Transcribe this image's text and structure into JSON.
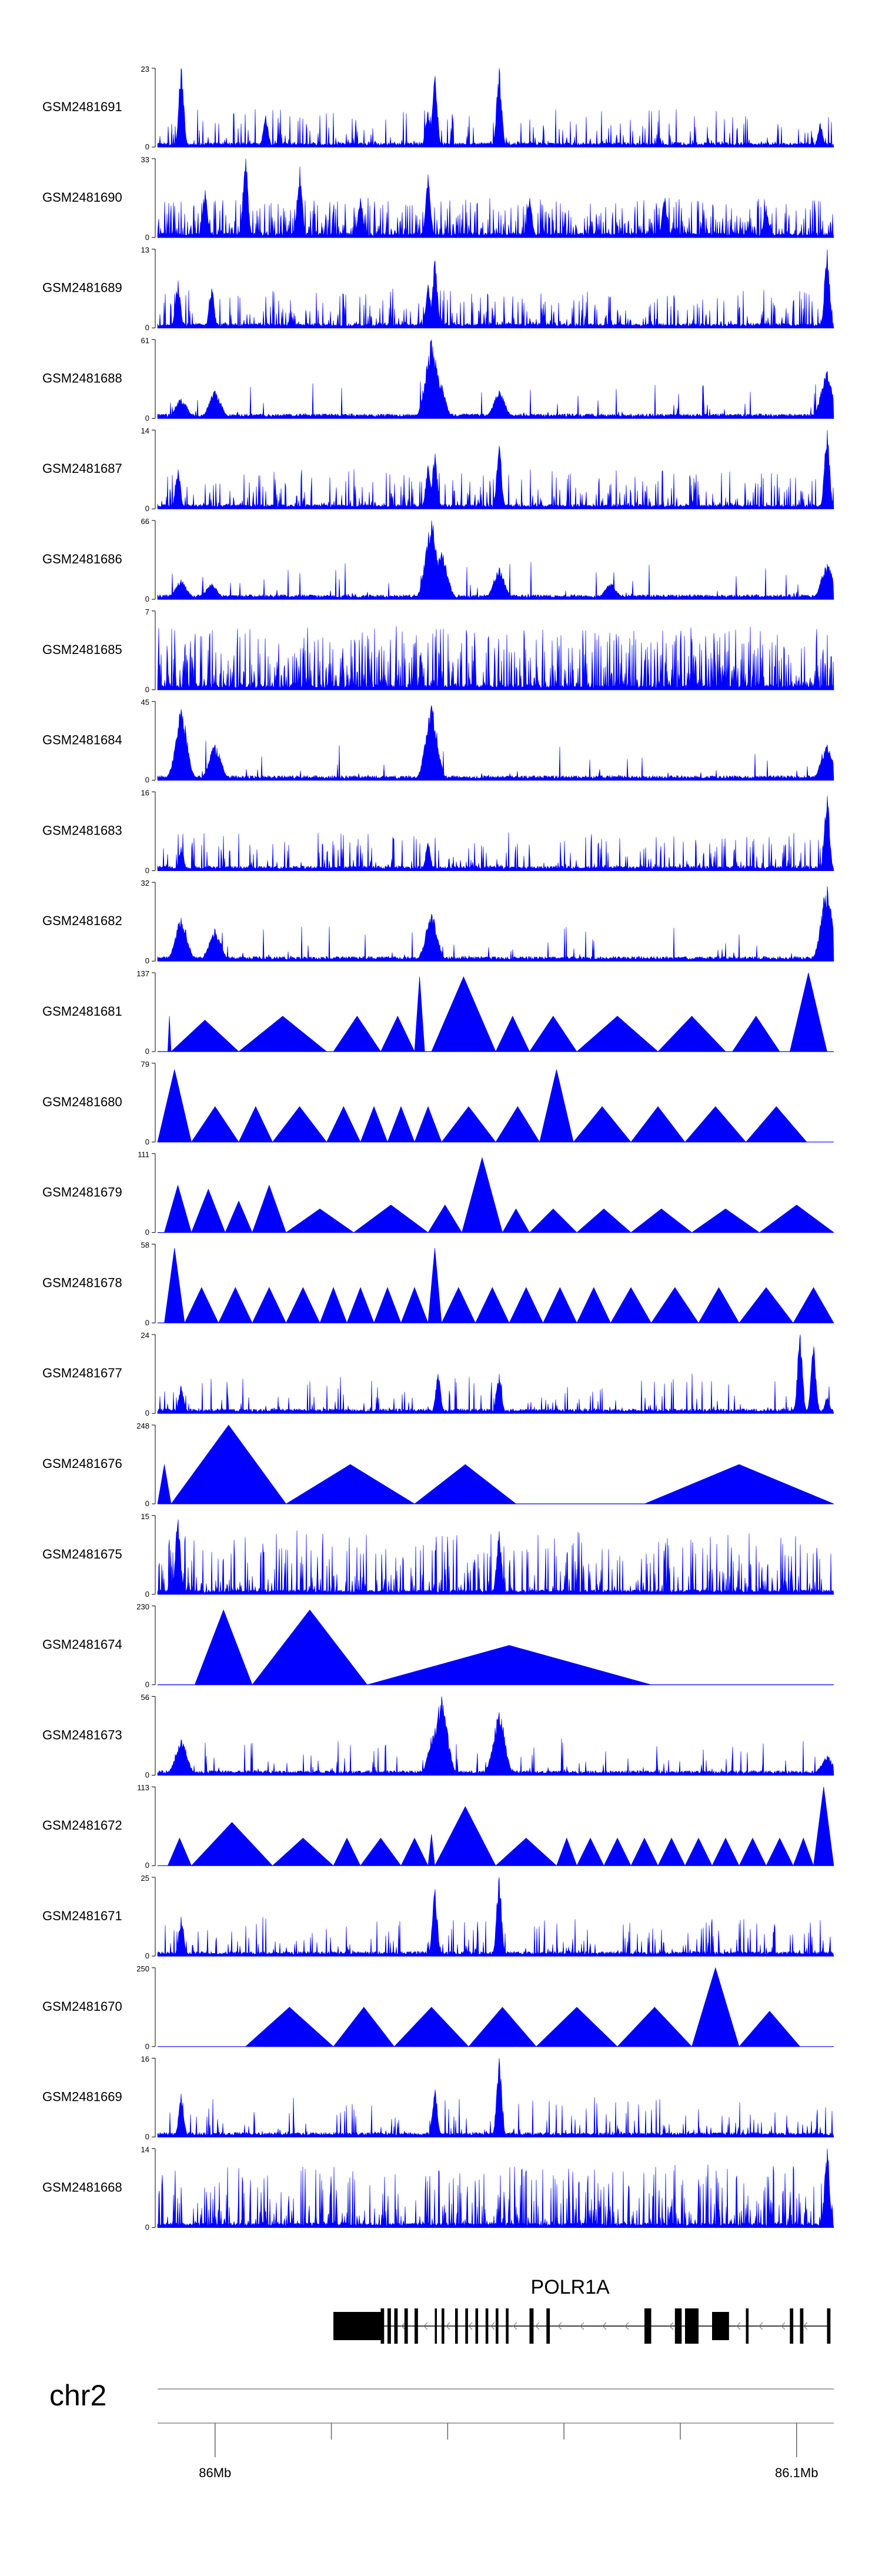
{
  "chart_data": {
    "type": "area",
    "description_source": "genome browser coverage tracks",
    "series_color": "#0000ff",
    "tracks": [
      {
        "name": "GSM2481691",
        "ymax": "23",
        "ymin": "0",
        "style": "spiky",
        "peaks": [
          [
            0.035,
            1.0
          ],
          [
            0.16,
            0.4
          ],
          [
            0.4,
            0.45
          ],
          [
            0.41,
            0.9
          ],
          [
            0.505,
            1.0
          ],
          [
            0.98,
            0.3
          ]
        ],
        "density": 0.22
      },
      {
        "name": "GSM2481690",
        "ymax": "33",
        "ymin": "0",
        "style": "spiky",
        "peaks": [
          [
            0.07,
            0.6
          ],
          [
            0.13,
            1.0
          ],
          [
            0.21,
            0.9
          ],
          [
            0.3,
            0.5
          ],
          [
            0.4,
            0.8
          ],
          [
            0.55,
            0.5
          ],
          [
            0.75,
            0.5
          ],
          [
            0.9,
            0.4
          ]
        ],
        "density": 0.55
      },
      {
        "name": "GSM2481689",
        "ymax": "13",
        "ymin": "0",
        "style": "spiky",
        "peaks": [
          [
            0.03,
            0.6
          ],
          [
            0.08,
            0.5
          ],
          [
            0.4,
            0.55
          ],
          [
            0.41,
            0.85
          ],
          [
            0.99,
            1.0
          ]
        ],
        "density": 0.3
      },
      {
        "name": "GSM2481688",
        "ymax": "61",
        "ymin": "0",
        "style": "peaks",
        "peaks": [
          [
            0.035,
            0.25
          ],
          [
            0.085,
            0.35
          ],
          [
            0.405,
            1.0
          ],
          [
            0.415,
            0.55
          ],
          [
            0.505,
            0.35
          ],
          [
            0.99,
            0.6
          ]
        ],
        "density": 0.05
      },
      {
        "name": "GSM2481687",
        "ymax": "14",
        "ymin": "0",
        "style": "spiky",
        "peaks": [
          [
            0.03,
            0.5
          ],
          [
            0.4,
            0.55
          ],
          [
            0.41,
            0.7
          ],
          [
            0.505,
            0.8
          ],
          [
            0.99,
            1.0
          ]
        ],
        "density": 0.3
      },
      {
        "name": "GSM2481686",
        "ymax": "66",
        "ymin": "0",
        "style": "peaks",
        "peaks": [
          [
            0.035,
            0.25
          ],
          [
            0.08,
            0.2
          ],
          [
            0.405,
            1.0
          ],
          [
            0.42,
            0.6
          ],
          [
            0.505,
            0.4
          ],
          [
            0.67,
            0.2
          ],
          [
            0.99,
            0.45
          ]
        ],
        "density": 0.05
      },
      {
        "name": "GSM2481685",
        "ymax": "7",
        "ymin": "0",
        "style": "dense",
        "peaks": [],
        "density": 0.6
      },
      {
        "name": "GSM2481684",
        "ymax": "45",
        "ymin": "0",
        "style": "peaks",
        "peaks": [
          [
            0.035,
            0.9
          ],
          [
            0.085,
            0.45
          ],
          [
            0.405,
            0.95
          ],
          [
            0.99,
            0.45
          ]
        ],
        "density": 0.04
      },
      {
        "name": "GSM2481683",
        "ymax": "16",
        "ymin": "0",
        "style": "spiky",
        "peaks": [
          [
            0.035,
            0.3
          ],
          [
            0.4,
            0.35
          ],
          [
            0.99,
            0.95
          ]
        ],
        "density": 0.22
      },
      {
        "name": "GSM2481682",
        "ymax": "32",
        "ymin": "0",
        "style": "peaks",
        "peaks": [
          [
            0.035,
            0.55
          ],
          [
            0.085,
            0.4
          ],
          [
            0.405,
            0.6
          ],
          [
            0.99,
            0.95
          ]
        ],
        "density": 0.06
      },
      {
        "name": "GSM2481681",
        "ymax": "137",
        "ymin": "0",
        "style": "triangles",
        "tri": [
          [
            0.015,
            0.02,
            0.45
          ],
          [
            0.02,
            0.12,
            0.4
          ],
          [
            0.12,
            0.25,
            0.45
          ],
          [
            0.26,
            0.33,
            0.45
          ],
          [
            0.33,
            0.38,
            0.45
          ],
          [
            0.38,
            0.395,
            0.95
          ],
          [
            0.405,
            0.5,
            0.95
          ],
          [
            0.5,
            0.55,
            0.45
          ],
          [
            0.55,
            0.62,
            0.45
          ],
          [
            0.62,
            0.74,
            0.45
          ],
          [
            0.74,
            0.84,
            0.45
          ],
          [
            0.85,
            0.92,
            0.45
          ],
          [
            0.935,
            0.99,
            1.0
          ]
        ]
      },
      {
        "name": "GSM2481680",
        "ymax": "79",
        "ymin": "0",
        "style": "triangles",
        "tri": [
          [
            0.0,
            0.05,
            0.92
          ],
          [
            0.05,
            0.12,
            0.45
          ],
          [
            0.12,
            0.17,
            0.45
          ],
          [
            0.17,
            0.25,
            0.45
          ],
          [
            0.25,
            0.3,
            0.45
          ],
          [
            0.3,
            0.34,
            0.45
          ],
          [
            0.34,
            0.38,
            0.45
          ],
          [
            0.38,
            0.42,
            0.45
          ],
          [
            0.42,
            0.5,
            0.45
          ],
          [
            0.5,
            0.565,
            0.45
          ],
          [
            0.565,
            0.615,
            0.92
          ],
          [
            0.615,
            0.7,
            0.45
          ],
          [
            0.7,
            0.78,
            0.45
          ],
          [
            0.78,
            0.87,
            0.45
          ],
          [
            0.87,
            0.96,
            0.45
          ]
        ]
      },
      {
        "name": "GSM2481679",
        "ymax": "111",
        "ymin": "0",
        "style": "triangles",
        "tri": [
          [
            0.01,
            0.05,
            0.6
          ],
          [
            0.05,
            0.1,
            0.55
          ],
          [
            0.1,
            0.14,
            0.4
          ],
          [
            0.14,
            0.19,
            0.6
          ],
          [
            0.19,
            0.29,
            0.3
          ],
          [
            0.29,
            0.4,
            0.35
          ],
          [
            0.4,
            0.45,
            0.35
          ],
          [
            0.45,
            0.51,
            0.95
          ],
          [
            0.51,
            0.55,
            0.3
          ],
          [
            0.55,
            0.62,
            0.3
          ],
          [
            0.62,
            0.7,
            0.3
          ],
          [
            0.7,
            0.79,
            0.3
          ],
          [
            0.79,
            0.89,
            0.3
          ],
          [
            0.89,
            1.0,
            0.35
          ]
        ]
      },
      {
        "name": "GSM2481678",
        "ymax": "58",
        "ymin": "0",
        "style": "triangles",
        "tri": [
          [
            0.01,
            0.04,
            0.95
          ],
          [
            0.04,
            0.09,
            0.45
          ],
          [
            0.09,
            0.14,
            0.45
          ],
          [
            0.14,
            0.19,
            0.45
          ],
          [
            0.19,
            0.24,
            0.45
          ],
          [
            0.24,
            0.28,
            0.45
          ],
          [
            0.28,
            0.32,
            0.45
          ],
          [
            0.32,
            0.36,
            0.45
          ],
          [
            0.36,
            0.4,
            0.45
          ],
          [
            0.4,
            0.42,
            0.95
          ],
          [
            0.42,
            0.47,
            0.45
          ],
          [
            0.47,
            0.52,
            0.45
          ],
          [
            0.52,
            0.57,
            0.45
          ],
          [
            0.57,
            0.62,
            0.45
          ],
          [
            0.62,
            0.67,
            0.45
          ],
          [
            0.67,
            0.73,
            0.45
          ],
          [
            0.73,
            0.8,
            0.45
          ],
          [
            0.8,
            0.86,
            0.45
          ],
          [
            0.86,
            0.94,
            0.45
          ],
          [
            0.94,
            1.0,
            0.45
          ]
        ]
      },
      {
        "name": "GSM2481677",
        "ymax": "24",
        "ymin": "0",
        "style": "spiky",
        "peaks": [
          [
            0.035,
            0.35
          ],
          [
            0.415,
            0.5
          ],
          [
            0.505,
            0.5
          ],
          [
            0.95,
            1.0
          ],
          [
            0.97,
            0.85
          ],
          [
            0.99,
            0.2
          ]
        ],
        "density": 0.15
      },
      {
        "name": "GSM2481676",
        "ymax": "248",
        "ymin": "0",
        "style": "triangles",
        "tri": [
          [
            0.0,
            0.02,
            0.5
          ],
          [
            0.02,
            0.19,
            1.0
          ],
          [
            0.19,
            0.38,
            0.5
          ],
          [
            0.38,
            0.53,
            0.5
          ],
          [
            0.53,
            0.72,
            0.0
          ],
          [
            0.72,
            1.0,
            0.5
          ]
        ]
      },
      {
        "name": "GSM2481675",
        "ymax": "15",
        "ymin": "0",
        "style": "dense",
        "peaks": [
          [
            0.03,
            0.95
          ],
          [
            0.505,
            0.8
          ]
        ],
        "density": 0.4
      },
      {
        "name": "GSM2481674",
        "ymax": "230",
        "ymin": "0",
        "style": "triangles",
        "tri": [
          [
            0.055,
            0.14,
            0.95
          ],
          [
            0.14,
            0.31,
            0.95
          ],
          [
            0.31,
            0.73,
            0.5
          ]
        ]
      },
      {
        "name": "GSM2481673",
        "ymax": "56",
        "ymin": "0",
        "style": "peaks",
        "peaks": [
          [
            0.035,
            0.45
          ],
          [
            0.41,
            0.6
          ],
          [
            0.42,
            1.0
          ],
          [
            0.505,
            0.8
          ],
          [
            0.99,
            0.25
          ]
        ],
        "density": 0.1
      },
      {
        "name": "GSM2481672",
        "ymax": "113",
        "ymin": "0",
        "style": "triangles",
        "tri": [
          [
            0.015,
            0.05,
            0.35
          ],
          [
            0.05,
            0.17,
            0.55
          ],
          [
            0.17,
            0.26,
            0.35
          ],
          [
            0.26,
            0.3,
            0.35
          ],
          [
            0.3,
            0.36,
            0.35
          ],
          [
            0.36,
            0.4,
            0.35
          ],
          [
            0.4,
            0.41,
            0.4
          ],
          [
            0.41,
            0.5,
            0.75
          ],
          [
            0.5,
            0.59,
            0.35
          ],
          [
            0.59,
            0.62,
            0.35
          ],
          [
            0.62,
            0.66,
            0.35
          ],
          [
            0.66,
            0.7,
            0.35
          ],
          [
            0.7,
            0.74,
            0.35
          ],
          [
            0.74,
            0.78,
            0.35
          ],
          [
            0.78,
            0.82,
            0.35
          ],
          [
            0.82,
            0.86,
            0.35
          ],
          [
            0.86,
            0.9,
            0.35
          ],
          [
            0.9,
            0.94,
            0.35
          ],
          [
            0.94,
            0.97,
            0.35
          ],
          [
            0.97,
            1.0,
            1.0
          ]
        ]
      },
      {
        "name": "GSM2481671",
        "ymax": "25",
        "ymin": "0",
        "style": "spiky",
        "peaks": [
          [
            0.035,
            0.5
          ],
          [
            0.41,
            0.85
          ],
          [
            0.505,
            1.0
          ]
        ],
        "density": 0.22
      },
      {
        "name": "GSM2481670",
        "ymax": "250",
        "ymin": "0",
        "style": "triangles",
        "tri": [
          [
            0.13,
            0.26,
            0.5
          ],
          [
            0.26,
            0.35,
            0.5
          ],
          [
            0.35,
            0.46,
            0.5
          ],
          [
            0.46,
            0.56,
            0.5
          ],
          [
            0.56,
            0.68,
            0.5
          ],
          [
            0.68,
            0.79,
            0.5
          ],
          [
            0.79,
            0.86,
            1.0
          ],
          [
            0.86,
            0.95,
            0.45
          ]
        ]
      },
      {
        "name": "GSM2481669",
        "ymax": "16",
        "ymin": "0",
        "style": "spiky",
        "peaks": [
          [
            0.035,
            0.55
          ],
          [
            0.41,
            0.6
          ],
          [
            0.505,
            1.0
          ]
        ],
        "density": 0.15
      },
      {
        "name": "GSM2481668",
        "ymax": "14",
        "ymin": "0",
        "style": "dense",
        "peaks": [
          [
            0.99,
            1.0
          ]
        ],
        "density": 0.45
      }
    ],
    "gene": {
      "name": "POLR1A",
      "strand": "-",
      "start_frac": 0.26,
      "end_frac": 0.995,
      "exons": [
        [
          0.26,
          0.33
        ],
        [
          0.33,
          0.335
        ],
        [
          0.34,
          0.345
        ],
        [
          0.35,
          0.355
        ],
        [
          0.365,
          0.37
        ],
        [
          0.38,
          0.385
        ],
        [
          0.41,
          0.413
        ],
        [
          0.42,
          0.424
        ],
        [
          0.44,
          0.444
        ],
        [
          0.455,
          0.459
        ],
        [
          0.47,
          0.474
        ],
        [
          0.485,
          0.489
        ],
        [
          0.5,
          0.504
        ],
        [
          0.515,
          0.519
        ],
        [
          0.55,
          0.556
        ],
        [
          0.575,
          0.58
        ],
        [
          0.72,
          0.73
        ],
        [
          0.765,
          0.775
        ],
        [
          0.78,
          0.79
        ],
        [
          0.79,
          0.8
        ],
        [
          0.82,
          0.845
        ],
        [
          0.87,
          0.874
        ],
        [
          0.935,
          0.94
        ],
        [
          0.95,
          0.955
        ],
        [
          0.99,
          0.995
        ]
      ]
    },
    "chromosome": "chr2",
    "axis": {
      "start_label": "86Mb",
      "end_label": "86.1Mb",
      "start_label_frac": 0.085,
      "end_label_frac": 0.945,
      "tick_fracs": [
        0.085,
        0.257,
        0.429,
        0.601,
        0.773,
        0.945
      ]
    }
  }
}
